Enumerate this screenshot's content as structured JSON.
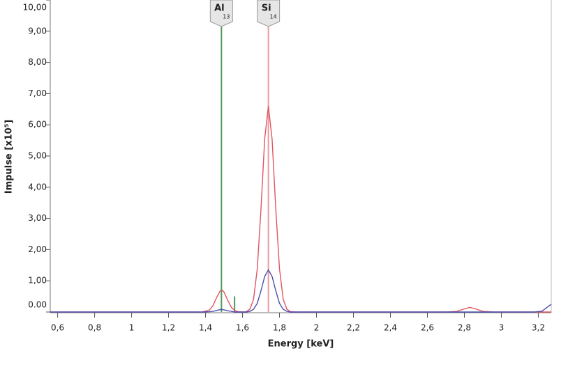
{
  "chart_data": {
    "type": "line",
    "x_label": "Energy [keV]",
    "y_label": "Impulse [x10⁵]",
    "xlim": [
      0.56,
      3.27
    ],
    "ylim": [
      0,
      10
    ],
    "xticks": [
      {
        "value": 0.6,
        "label": "0,6"
      },
      {
        "value": 0.8,
        "label": "0,8"
      },
      1,
      {
        "value": 1.2,
        "label": "1,2"
      },
      {
        "value": 1.4,
        "label": "1,4"
      },
      {
        "value": 1.6,
        "label": "1,6"
      },
      {
        "value": 1.8,
        "label": "1,8"
      },
      2,
      {
        "value": 2.2,
        "label": "2,2"
      },
      {
        "value": 2.4,
        "label": "2,4"
      },
      {
        "value": 2.6,
        "label": "2,6"
      },
      {
        "value": 2.8,
        "label": "2,8"
      },
      3,
      {
        "value": 3.2,
        "label": "3,2"
      }
    ],
    "yticks": [
      {
        "value": 0,
        "label": "0.00"
      },
      {
        "value": 1,
        "label": "1,00"
      },
      {
        "value": 2,
        "label": "2,00"
      },
      {
        "value": 3,
        "label": "3,00"
      },
      {
        "value": 4,
        "label": "4,00"
      },
      {
        "value": 5,
        "label": "5,00"
      },
      {
        "value": 6,
        "label": "6,00"
      },
      {
        "value": 7,
        "label": "7,00"
      },
      {
        "value": 8,
        "label": "8,00"
      },
      {
        "value": 9,
        "label": "9,00"
      },
      {
        "value": 10,
        "label": "10,00"
      }
    ],
    "x": [
      0.56,
      1.0,
      1.3,
      1.38,
      1.42,
      1.44,
      1.46,
      1.48,
      1.49,
      1.5,
      1.52,
      1.54,
      1.56,
      1.58,
      1.6,
      1.62,
      1.64,
      1.66,
      1.68,
      1.7,
      1.72,
      1.74,
      1.76,
      1.78,
      1.8,
      1.82,
      1.84,
      1.86,
      1.9,
      2.0,
      2.6,
      2.7,
      2.76,
      2.8,
      2.83,
      2.86,
      2.9,
      2.96,
      3.1,
      3.18,
      3.22,
      3.27
    ],
    "series": [
      {
        "color": "#e05560",
        "values": [
          0,
          0,
          0,
          0,
          0.06,
          0.2,
          0.47,
          0.68,
          0.7,
          0.64,
          0.38,
          0.15,
          0.04,
          0.01,
          0,
          0.01,
          0.09,
          0.41,
          1.39,
          3.3,
          5.55,
          6.6,
          5.55,
          3.3,
          1.39,
          0.41,
          0.09,
          0.01,
          0,
          0,
          0,
          0,
          0.02,
          0.1,
          0.15,
          0.1,
          0.02,
          0,
          0,
          0,
          0,
          0
        ]
      },
      {
        "color": "#4a4fb0",
        "values": [
          0,
          0,
          0,
          0,
          0.01,
          0.02,
          0.05,
          0.08,
          0.08,
          0.07,
          0.04,
          0.02,
          0,
          0,
          0,
          0,
          0.02,
          0.09,
          0.28,
          0.68,
          1.14,
          1.35,
          1.14,
          0.68,
          0.28,
          0.09,
          0.02,
          0,
          0,
          0,
          0,
          0,
          0,
          0,
          0,
          0,
          0,
          0,
          0,
          0,
          0.03,
          0.25
        ]
      }
    ],
    "markers": [
      {
        "label": "Al",
        "number": 13,
        "x": 1.486,
        "color": "#4f9a5a",
        "lines": [
          {
            "x": 1.557,
            "height": 0.5
          }
        ]
      },
      {
        "label": "Si",
        "number": 14,
        "x": 1.74,
        "color": "#e89aa0",
        "lines": []
      }
    ]
  }
}
